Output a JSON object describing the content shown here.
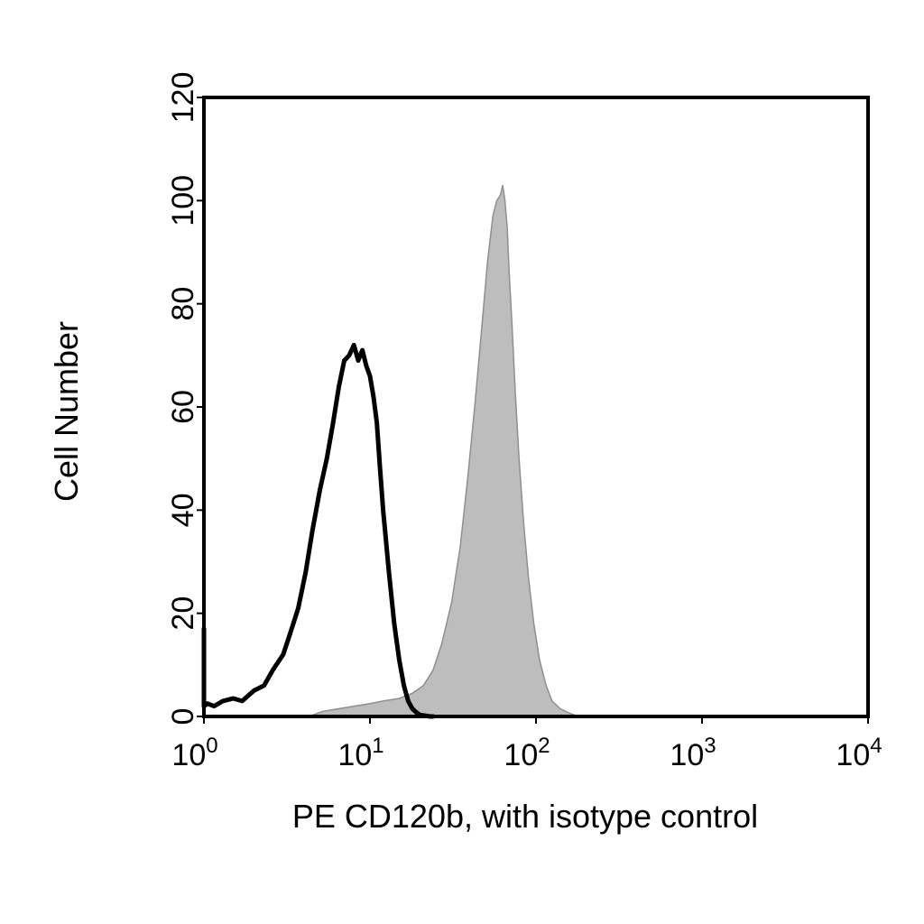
{
  "chart_data": {
    "type": "area",
    "xscale": "log",
    "xlim": [
      1,
      10000
    ],
    "ylim": [
      0,
      120
    ],
    "xlabel": "PE CD120b, with isotype control",
    "ylabel": "Cell Number",
    "grid": false,
    "x_ticks": [
      {
        "value": 1,
        "base": "10",
        "exp": "0"
      },
      {
        "value": 10,
        "base": "10",
        "exp": "1"
      },
      {
        "value": 100,
        "base": "10",
        "exp": "2"
      },
      {
        "value": 1000,
        "base": "10",
        "exp": "3"
      },
      {
        "value": 10000,
        "base": "10",
        "exp": "4"
      }
    ],
    "y_ticks": [
      {
        "value": 0,
        "label": "0"
      },
      {
        "value": 20,
        "label": "20"
      },
      {
        "value": 40,
        "label": "40"
      },
      {
        "value": 60,
        "label": "60"
      },
      {
        "value": 80,
        "label": "80"
      },
      {
        "value": 100,
        "label": "100"
      },
      {
        "value": 120,
        "label": "120"
      }
    ],
    "series": [
      {
        "style": "filled",
        "fill": "#bdbdbd",
        "stroke": "#8f8f8f",
        "x": [
          4.3,
          5.2,
          6.5,
          8.0,
          10.0,
          12.0,
          15.0,
          18.0,
          21.0,
          24.0,
          27.0,
          31.0,
          35.0,
          39.0,
          43.0,
          47.0,
          51.0,
          55.0,
          58.0,
          61.0,
          63.0,
          65.0,
          67.0,
          69.0,
          72.0,
          75.0,
          79.0,
          84.0,
          90.0,
          97.0,
          105.0,
          115.0,
          125.0,
          140.0,
          155.0,
          170.0,
          185.0
        ],
        "y": [
          0,
          1,
          1.5,
          2,
          2.5,
          3,
          3.5,
          4.5,
          6,
          9,
          14,
          22,
          33,
          47,
          61,
          75,
          88,
          97,
          100,
          101,
          103,
          100,
          95,
          86,
          75,
          63,
          50,
          38,
          27,
          18,
          11,
          6,
          3,
          1.5,
          0.8,
          0.3,
          0
        ]
      },
      {
        "style": "line",
        "stroke": "#000000",
        "x": [
          1.0,
          1.0,
          1.05,
          1.15,
          1.3,
          1.5,
          1.7,
          2.0,
          2.3,
          2.6,
          3.0,
          3.3,
          3.7,
          4.1,
          4.5,
          5.0,
          5.5,
          6.0,
          6.5,
          7.0,
          7.5,
          8.0,
          8.5,
          9.0,
          9.5,
          10.0,
          10.5,
          11.0,
          11.5,
          12.0,
          13.0,
          14.0,
          15.0,
          16.0,
          17.0,
          18.0,
          19.0,
          20.0,
          21.0,
          22.0,
          23.0,
          24.0
        ],
        "y": [
          17,
          2,
          2.5,
          2,
          3,
          3.5,
          3,
          5,
          6,
          9,
          12,
          16,
          21,
          28,
          36,
          44,
          50,
          57,
          64,
          69,
          70,
          72,
          69,
          71,
          68,
          66,
          62,
          57,
          48,
          40,
          28,
          18,
          11,
          6,
          3,
          1.5,
          0.8,
          0.3,
          0.2,
          0.1,
          0,
          0
        ]
      }
    ]
  }
}
